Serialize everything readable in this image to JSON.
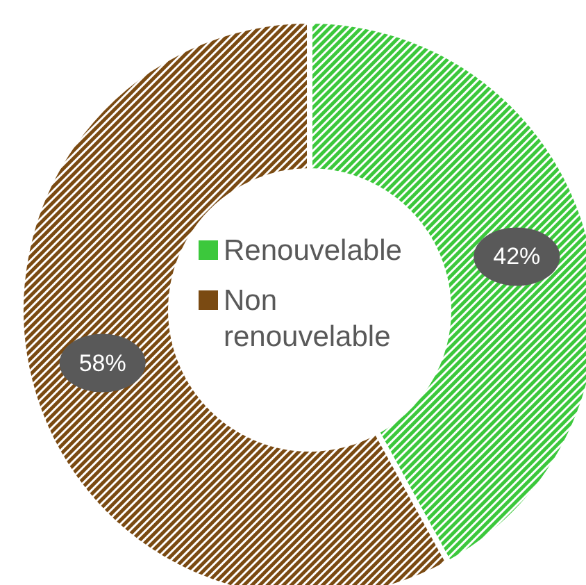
{
  "chart_data": {
    "type": "donut",
    "categories": [
      "Renouvelable",
      "Non renouvelable"
    ],
    "values": [
      42,
      58
    ],
    "colors": [
      "#3cc83c",
      "#7a4a12"
    ],
    "value_labels": [
      "42%",
      "58%"
    ],
    "legend": "center"
  }
}
